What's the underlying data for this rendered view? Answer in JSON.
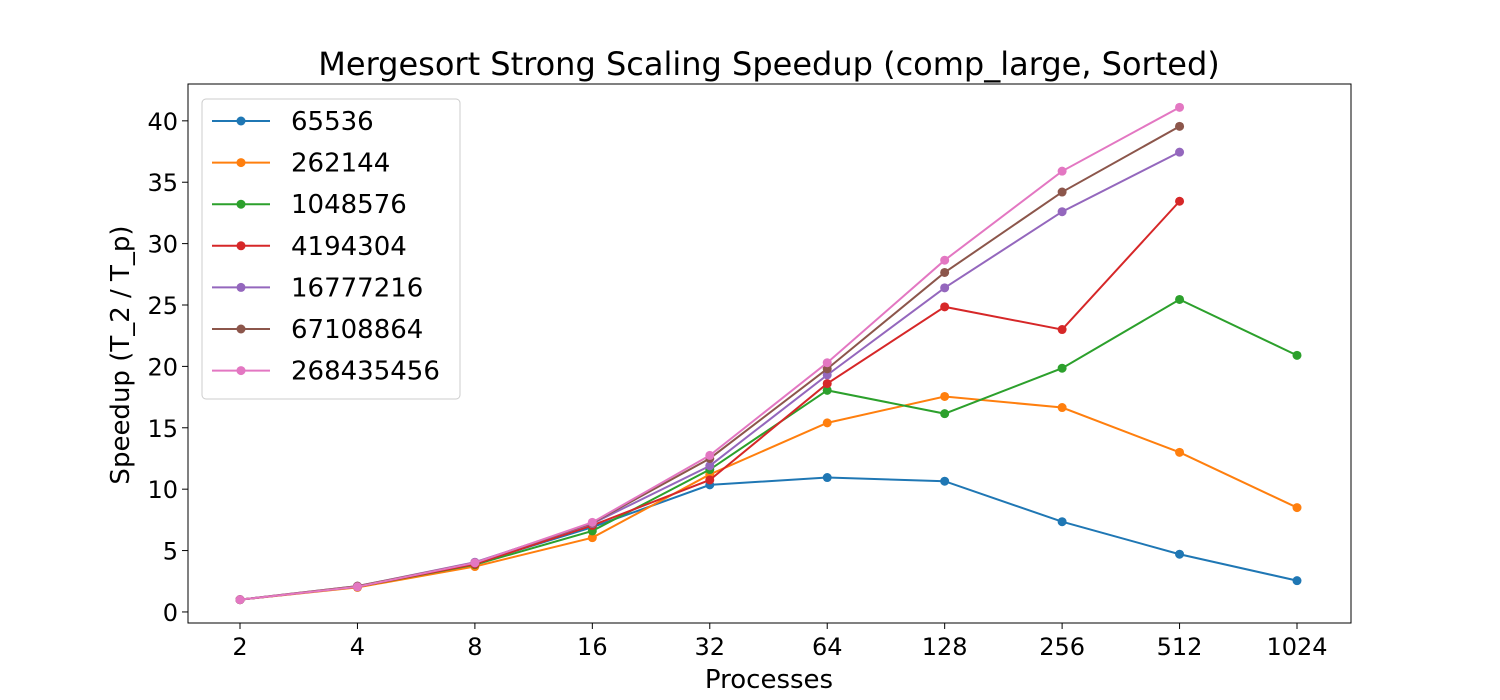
{
  "chart_data": {
    "type": "line",
    "title": "Mergesort Strong Scaling Speedup (comp_large, Sorted)",
    "xlabel": "Processes",
    "ylabel": "Speedup (T_2 / T_p)",
    "x": [
      2,
      4,
      8,
      16,
      32,
      64,
      128,
      256,
      512,
      1024
    ],
    "x_tick_labels": [
      "2",
      "4",
      "8",
      "16",
      "32",
      "64",
      "128",
      "256",
      "512",
      "1024"
    ],
    "x_scale": "log2",
    "ylim": [
      -0.9,
      43.0
    ],
    "y_ticks": [
      0,
      5,
      10,
      15,
      20,
      25,
      30,
      35,
      40
    ],
    "y_tick_labels": [
      "0",
      "5",
      "10",
      "15",
      "20",
      "25",
      "30",
      "35",
      "40"
    ],
    "grid": false,
    "legend_position": "top-left",
    "series": [
      {
        "name": "65536",
        "color": "#1f77b4",
        "values": [
          1.0,
          2.05,
          3.95,
          6.9,
          10.35,
          10.95,
          10.65,
          7.35,
          4.7,
          2.55
        ]
      },
      {
        "name": "262144",
        "color": "#ff7f0e",
        "values": [
          1.0,
          2.0,
          3.7,
          6.05,
          11.2,
          15.4,
          17.55,
          16.65,
          13.0,
          8.5
        ]
      },
      {
        "name": "1048576",
        "color": "#2ca02c",
        "values": [
          1.0,
          2.05,
          3.85,
          6.6,
          11.6,
          18.05,
          16.15,
          19.85,
          25.45,
          20.9
        ]
      },
      {
        "name": "4194304",
        "color": "#d62728",
        "values": [
          1.0,
          2.05,
          3.9,
          7.05,
          10.75,
          18.6,
          24.85,
          23.0,
          33.45,
          null
        ]
      },
      {
        "name": "16777216",
        "color": "#9467bd",
        "values": [
          1.0,
          2.1,
          4.05,
          7.2,
          11.9,
          19.3,
          26.4,
          32.6,
          37.45,
          null
        ]
      },
      {
        "name": "67108864",
        "color": "#8c564b",
        "values": [
          1.0,
          2.1,
          4.0,
          7.25,
          12.5,
          19.8,
          27.65,
          34.2,
          39.55,
          null
        ]
      },
      {
        "name": "268435456",
        "color": "#e377c2",
        "values": [
          1.0,
          2.05,
          4.0,
          7.3,
          12.75,
          20.3,
          28.65,
          35.9,
          41.1,
          null
        ]
      }
    ]
  }
}
